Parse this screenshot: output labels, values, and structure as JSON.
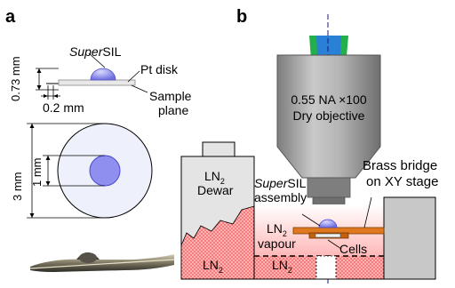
{
  "panel_a_label": "a",
  "panel_b_label": "b",
  "supersil_label_prefix": "Super",
  "supersil_label_suffix": "SIL",
  "pt_disk_label": "Pt disk",
  "sample_plane_label_1": "Sample",
  "sample_plane_label_2": "plane",
  "height_label": "0.73 mm",
  "offset_label": "0.2 mm",
  "outer_diameter_label": "3 mm",
  "inner_diameter_label": "1 mm",
  "objective_line1": "0.55 NA ×100",
  "objective_line2": "Dry objective",
  "dewar_line1": "LN",
  "dewar_sub": "2",
  "dewar_line2": "Dewar",
  "ln2_left_label": "LN",
  "ln2_left_sub": "2",
  "ln2_center_label": "LN",
  "ln2_center_sub": "2",
  "vapour_label_1": "LN",
  "vapour_sub": "2",
  "vapour_label_2": "vapour",
  "supersil_assembly_prefix": "Super",
  "supersil_assembly_suffix": "SIL",
  "assembly_label": "assembly",
  "brass_bridge_line1": "Brass bridge",
  "brass_bridge_line2": "on XY stage",
  "cells_label": "Cells",
  "colors": {
    "sil_blue": "#8f8ff0",
    "ln2_red": "#ff8080",
    "beam_green": "#22b04a",
    "beam_blue": "#2a7fd6",
    "brass": "#e07820",
    "objective_gray": "#a9a9a9",
    "stage_gray": "#c8c8c8"
  }
}
